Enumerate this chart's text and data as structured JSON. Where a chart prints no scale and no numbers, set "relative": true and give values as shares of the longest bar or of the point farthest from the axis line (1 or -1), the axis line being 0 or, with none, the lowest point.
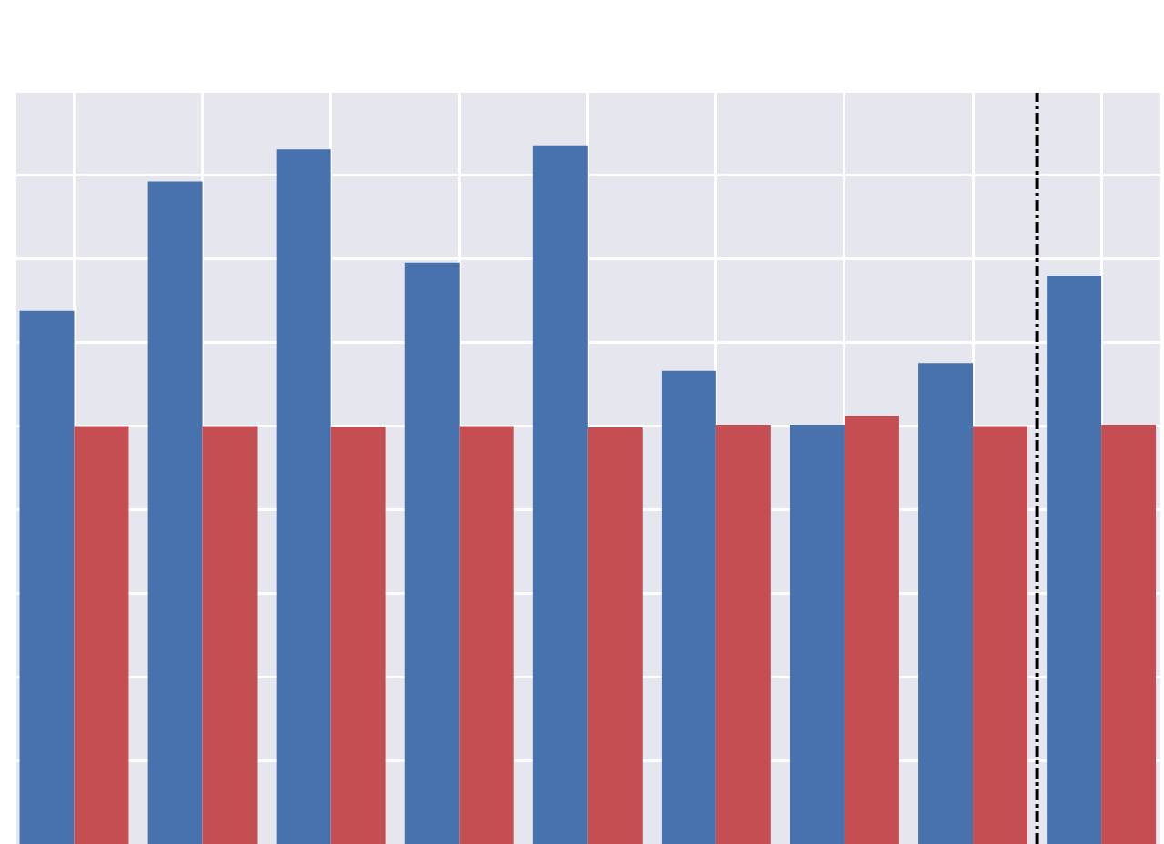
{
  "chart_data": {
    "type": "bar",
    "relative": true,
    "grid": true,
    "categories": [
      null,
      null,
      null,
      null,
      null,
      null,
      null,
      null,
      null
    ],
    "series": [
      {
        "color": "#4872ae",
        "values": [
          0.763,
          0.948,
          0.994,
          0.832,
          1,
          0.677,
          0.6,
          0.688,
          0.813
        ]
      },
      {
        "color": "#c44e52",
        "values": [
          0.598,
          0.598,
          0.597,
          0.598,
          0.596,
          0.6,
          0.613,
          0.598,
          0.6
        ]
      }
    ]
  }
}
